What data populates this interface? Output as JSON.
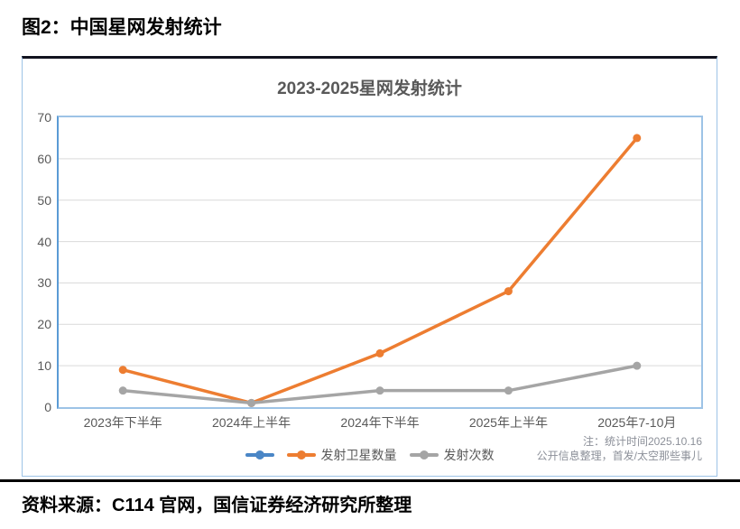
{
  "page": {
    "figure_label": "图2：中国星网发射统计",
    "source_note": "资料来源：C114 官网，国信证券经济研究所整理"
  },
  "chart_data": {
    "type": "line",
    "title": "2023-2025星网发射统计",
    "categories": [
      "2023年下半年",
      "2024年上半年",
      "2024年下半年",
      "2025年上半年",
      "2025年7-10月"
    ],
    "series": [
      {
        "name": "",
        "color": "#4a86c6",
        "values": []
      },
      {
        "name": "发射卫星数量",
        "color": "#ED7D31",
        "values": [
          9,
          1,
          13,
          28,
          65
        ]
      },
      {
        "name": "发射次数",
        "color": "#A5A5A5",
        "values": [
          4,
          1,
          4,
          4,
          10
        ]
      }
    ],
    "ylabel": "",
    "xlabel": "",
    "ylim": [
      0,
      70
    ],
    "ytick_step": 10,
    "grid": true,
    "legend_position": "bottom",
    "annotation_line1": "注：统计时间2025.10.16",
    "annotation_line2": "公开信息整理，首发/太空那些事儿"
  },
  "ui_colors": {
    "grid": "#d9d9d9",
    "axis_text": "#595959",
    "plot_border": "#9dc3e6",
    "y_axis_line": "#5b9bd5",
    "container_top_rule": "#12131f",
    "note_text": "#8c9099"
  }
}
